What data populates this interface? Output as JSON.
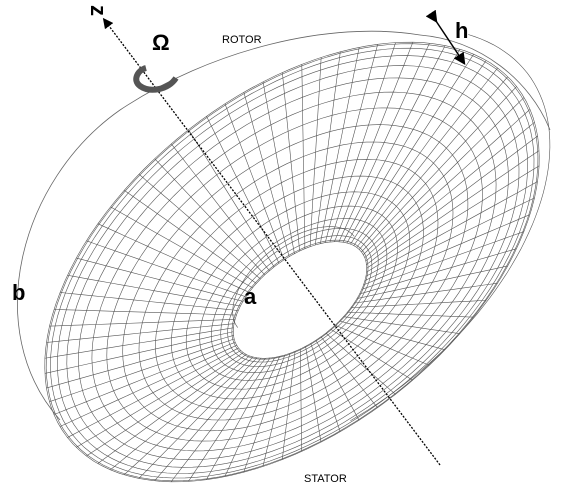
{
  "axis_label": "z",
  "omega": "Ω",
  "rotor": "ROTOR",
  "h": "h",
  "b": "b",
  "a": "a",
  "stator": "STATOR"
}
